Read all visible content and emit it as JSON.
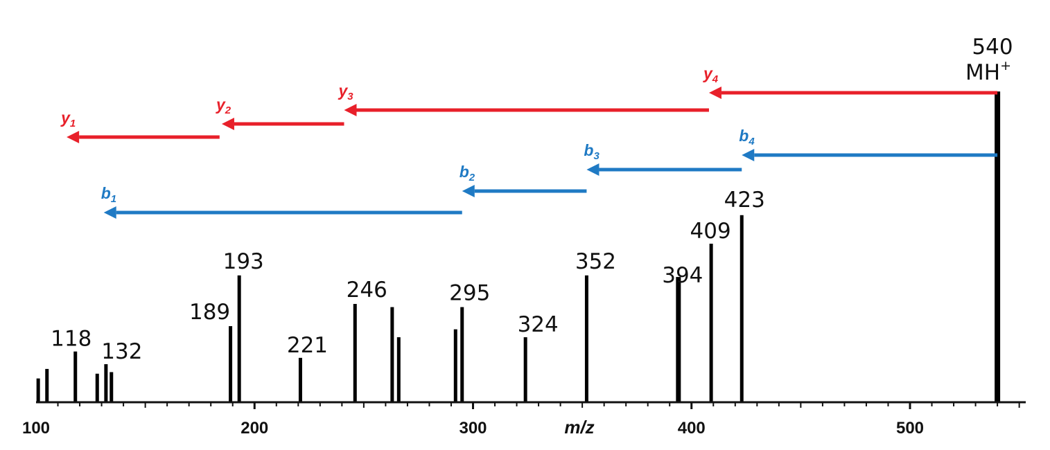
{
  "chart_data": {
    "type": "bar",
    "xlabel": "m/z",
    "xlim": [
      100,
      555
    ],
    "ylim": [
      0,
      100
    ],
    "x_ticks": [
      100,
      200,
      300,
      400,
      500
    ],
    "precursor": {
      "mz": "540",
      "label_main": "MH",
      "label_sup": "+"
    },
    "peaks": [
      {
        "mz": 101,
        "intensity": 7.5
      },
      {
        "mz": 105,
        "intensity": 10.5
      },
      {
        "mz": 118,
        "intensity": 16,
        "label": "118"
      },
      {
        "mz": 128,
        "intensity": 9
      },
      {
        "mz": 132,
        "intensity": 12,
        "label": "132"
      },
      {
        "mz": 134.5,
        "intensity": 9.5
      },
      {
        "mz": 189,
        "intensity": 24,
        "label": "189"
      },
      {
        "mz": 193,
        "intensity": 40,
        "label": "193"
      },
      {
        "mz": 221,
        "intensity": 14,
        "label": "221"
      },
      {
        "mz": 246,
        "intensity": 31,
        "label": "246"
      },
      {
        "mz": 263,
        "intensity": 30
      },
      {
        "mz": 266,
        "intensity": 20.5
      },
      {
        "mz": 292,
        "intensity": 23
      },
      {
        "mz": 295,
        "intensity": 30,
        "label": "295"
      },
      {
        "mz": 324,
        "intensity": 20.5,
        "label": "324"
      },
      {
        "mz": 352,
        "intensity": 40,
        "label": "352"
      },
      {
        "mz": 394,
        "intensity": 39.5,
        "label": "394"
      },
      {
        "mz": 409,
        "intensity": 50,
        "label": "409"
      },
      {
        "mz": 423,
        "intensity": 59,
        "label": "423"
      },
      {
        "mz": 540,
        "intensity": 98
      }
    ],
    "y_ions": [
      {
        "name": "y",
        "sub": "1",
        "from": 184,
        "to": 114,
        "color": "#e8202a"
      },
      {
        "name": "y",
        "sub": "2",
        "from": 241,
        "to": 185,
        "color": "#e8202a"
      },
      {
        "name": "y",
        "sub": "3",
        "from": 408,
        "to": 241,
        "color": "#e8202a"
      },
      {
        "name": "y",
        "sub": "4",
        "from": 540,
        "to": 408,
        "color": "#e8202a"
      }
    ],
    "b_ions": [
      {
        "name": "b",
        "sub": "1",
        "from": 295,
        "to": 131,
        "color": "#1f7ac4"
      },
      {
        "name": "b",
        "sub": "2",
        "from": 352,
        "to": 295,
        "color": "#1f7ac4"
      },
      {
        "name": "b",
        "sub": "3",
        "from": 423,
        "to": 352,
        "color": "#1f7ac4"
      },
      {
        "name": "b",
        "sub": "4",
        "from": 540,
        "to": 423,
        "color": "#1f7ac4"
      }
    ]
  }
}
